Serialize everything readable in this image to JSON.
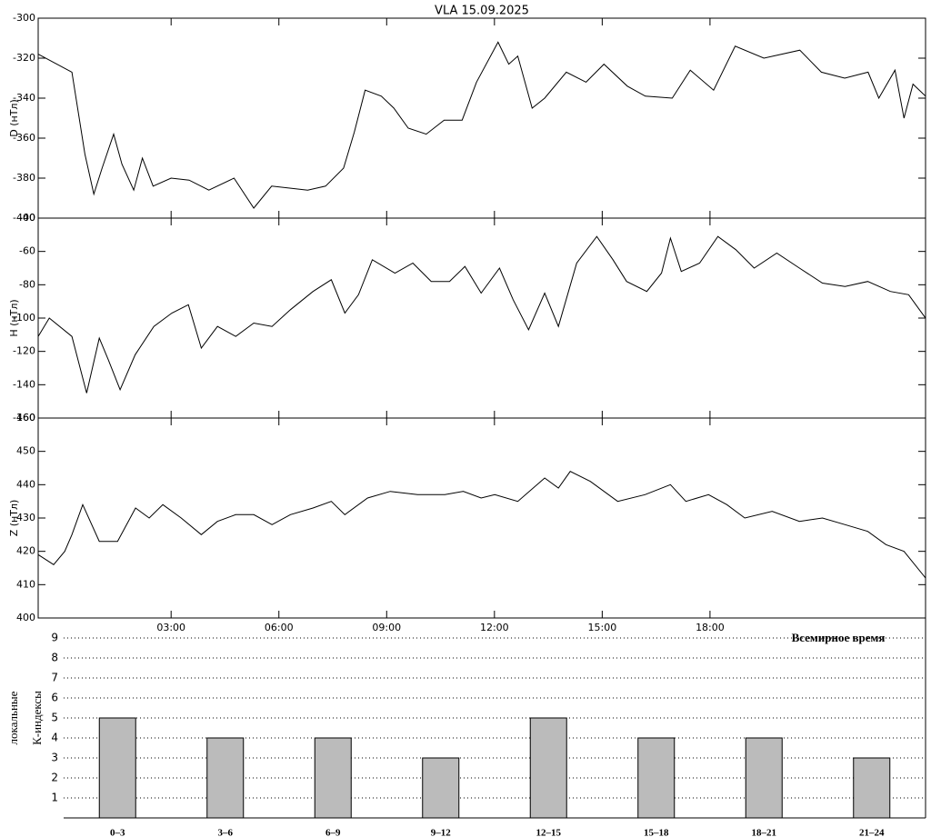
{
  "chart_data": [
    {
      "type": "line",
      "title": "VLA   15.09.2025",
      "y_label": "D (нТл)",
      "color": "#000000",
      "xlim": [
        -0.7,
        24
      ],
      "x": [
        -0.7,
        0.24,
        0.6,
        0.85,
        1.08,
        1.4,
        1.63,
        1.96,
        2.2,
        2.5,
        3.0,
        3.5,
        4.05,
        4.75,
        5.3,
        5.8,
        6.3,
        6.8,
        7.3,
        7.8,
        8.1,
        8.4,
        8.85,
        9.2,
        9.6,
        10.1,
        10.6,
        11.1,
        11.5,
        12.1,
        12.4,
        12.65,
        13.05,
        13.4,
        14.0,
        14.55,
        15.05,
        15.7,
        16.2,
        16.95,
        17.45,
        18.1,
        18.7,
        19.5,
        20.5,
        21.1,
        21.75,
        22.4,
        22.7,
        23.15,
        23.4,
        23.65,
        24
      ],
      "values": [
        -318,
        -327,
        -368,
        -388,
        -375,
        -358,
        -373,
        -386,
        -370,
        -384,
        -380,
        -381,
        -386,
        -380,
        -395,
        -384,
        -385,
        -386,
        -384,
        -375,
        -357,
        -336,
        -339,
        -345,
        -355,
        -358,
        -351,
        -351,
        -332,
        -312,
        -323,
        -319,
        -345,
        -340,
        -327,
        -332,
        -323,
        -334,
        -339,
        -340,
        -326,
        -336,
        -314,
        -320,
        -316,
        -327,
        -330,
        -327,
        -340,
        -326,
        -350,
        -333,
        -339
      ],
      "ylim": [
        -400,
        -300
      ],
      "yticks": [
        -400,
        -380,
        -360,
        -340,
        -320,
        -300
      ]
    },
    {
      "type": "line",
      "y_label": "H (нТл)",
      "color": "#000000",
      "xlim": [
        -0.7,
        24
      ],
      "x": [
        -0.7,
        -0.39,
        0.24,
        0.65,
        1.0,
        1.25,
        1.58,
        2.0,
        2.52,
        3.02,
        3.48,
        3.84,
        4.29,
        4.8,
        5.3,
        5.81,
        6.32,
        6.95,
        7.46,
        7.835,
        8.215,
        8.6,
        9.23,
        9.73,
        10.24,
        10.75,
        11.18,
        11.63,
        12.14,
        12.52,
        12.95,
        13.4,
        13.78,
        14.29,
        14.85,
        15.3,
        15.68,
        16.24,
        16.65,
        16.9,
        17.2,
        17.71,
        18.22,
        18.72,
        19.23,
        19.86,
        20.49,
        21.13,
        21.76,
        22.39,
        23.02,
        23.53,
        24
      ],
      "values": [
        -111,
        -100,
        -111,
        -145,
        -112,
        -125,
        -143,
        -122,
        -105,
        -97,
        -92,
        -118,
        -105,
        -111,
        -103,
        -105,
        -95,
        -84,
        -77,
        -97,
        -86,
        -65,
        -73,
        -67,
        -78,
        -78,
        -69,
        -85,
        -70,
        -89,
        -107,
        -85,
        -105,
        -67,
        -51,
        -65,
        -78,
        -84,
        -73,
        -52,
        -72,
        -67,
        -51,
        -59,
        -70,
        -61,
        -70,
        -79,
        -81,
        -78,
        -84,
        -86,
        -100
      ],
      "ylim": [
        -160,
        -40
      ],
      "yticks": [
        -160,
        -140,
        -120,
        -100,
        -80,
        -60,
        -40
      ]
    },
    {
      "type": "line",
      "y_label": "Z (нТл)",
      "color": "#000000",
      "xlim": [
        -0.7,
        24
      ],
      "x": [
        -0.7,
        -0.27,
        0.04,
        0.24,
        0.54,
        1.0,
        1.51,
        2.01,
        2.39,
        2.77,
        3.28,
        3.84,
        4.29,
        4.8,
        5.3,
        5.81,
        6.32,
        6.95,
        7.46,
        7.835,
        8.47,
        9.1,
        9.86,
        10.62,
        11.13,
        11.63,
        12.01,
        12.65,
        13.4,
        13.78,
        14.11,
        14.67,
        15.43,
        16.19,
        16.9,
        17.33,
        17.96,
        18.47,
        18.97,
        19.73,
        20.49,
        21.13,
        21.76,
        22.39,
        22.9,
        23.4,
        24
      ],
      "values": [
        419,
        416,
        420,
        425,
        434,
        423,
        423,
        433,
        430,
        434,
        430,
        425,
        429,
        431,
        431,
        428,
        431,
        433,
        435,
        431,
        436,
        438,
        437,
        437,
        438,
        436,
        437,
        435,
        442,
        439,
        444,
        441,
        435,
        437,
        440,
        435,
        437,
        434,
        430,
        432,
        429,
        430,
        428,
        426,
        422,
        420,
        412
      ],
      "ylim": [
        400,
        460
      ],
      "yticks": [
        400,
        410,
        420,
        430,
        440,
        450,
        460
      ],
      "xticks": [
        {
          "value": 3,
          "label": "03:00"
        },
        {
          "value": 6,
          "label": "06:00"
        },
        {
          "value": 9,
          "label": "09:00"
        },
        {
          "value": 12,
          "label": "12:00"
        },
        {
          "value": 15,
          "label": "15:00"
        },
        {
          "value": 18,
          "label": "18:00"
        }
      ],
      "annotation": "Всемирное время"
    },
    {
      "type": "bar",
      "y_label": [
        "локальные",
        "К-индексы"
      ],
      "color": "#bbbbbb",
      "categories": [
        "0–3",
        "3–6",
        "6–9",
        "9–12",
        "12–15",
        "15–18",
        "18–21",
        "21–24"
      ],
      "values": [
        5,
        4,
        4,
        3,
        5,
        4,
        4,
        3
      ],
      "ylim": [
        0,
        10
      ],
      "yticks": [
        1,
        2,
        3,
        4,
        5,
        6,
        7,
        8,
        9
      ],
      "grid": true
    }
  ]
}
